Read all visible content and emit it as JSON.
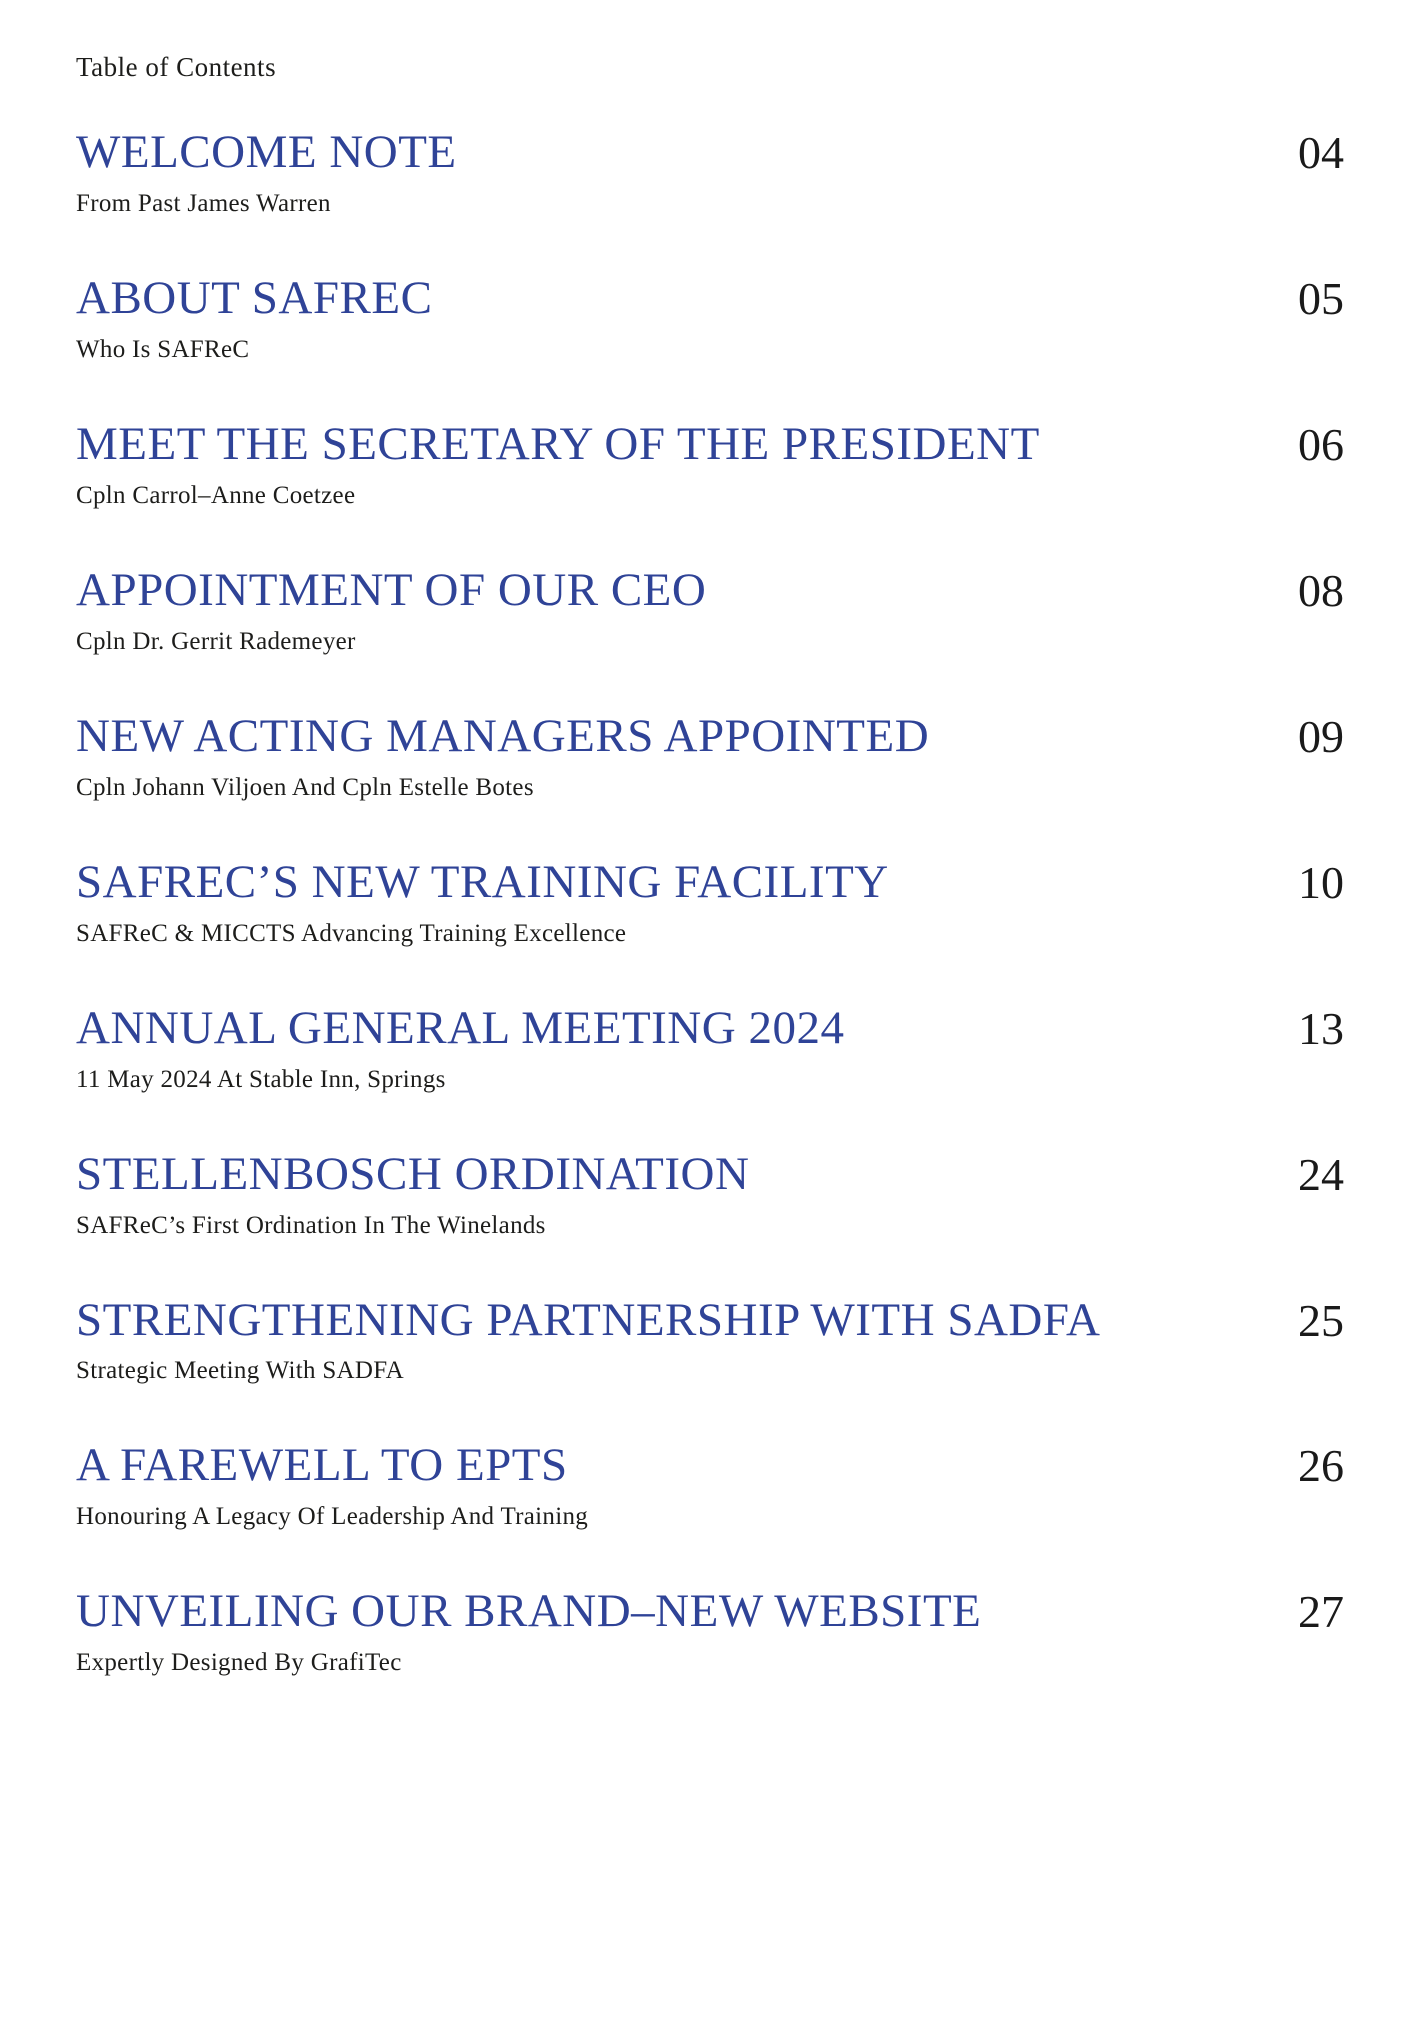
{
  "page": {
    "heading": "Table of Contents"
  },
  "colors": {
    "title_blue": "#2f4397",
    "body_text": "#1d1d1b",
    "background": "#ffffff"
  },
  "entries": [
    {
      "title": "WELCOME NOTE",
      "subtitle": "From Past James Warren",
      "page": "04"
    },
    {
      "title": "ABOUT SAFREC",
      "subtitle": "Who Is SAFReC",
      "page": "05"
    },
    {
      "title": "MEET THE SECRETARY OF THE PRESIDENT",
      "subtitle": "Cpln Carrol–Anne Coetzee",
      "page": "06"
    },
    {
      "title": "APPOINTMENT OF OUR CEO",
      "subtitle": "Cpln Dr. Gerrit Rademeyer",
      "page": "08"
    },
    {
      "title": "NEW ACTING MANAGERS APPOINTED",
      "subtitle": "Cpln Johann Viljoen And Cpln Estelle Botes",
      "page": "09"
    },
    {
      "title": "SAFREC’S NEW TRAINING FACILITY",
      "subtitle": "SAFReC & MICCTS Advancing Training Excellence",
      "page": "10"
    },
    {
      "title": "ANNUAL GENERAL MEETING 2024",
      "subtitle": "11 May 2024 At Stable Inn, Springs",
      "page": "13"
    },
    {
      "title": "STELLENBOSCH ORDINATION",
      "subtitle": "SAFReC’s First Ordination In The Winelands",
      "page": "24"
    },
    {
      "title": "STRENGTHENING PARTNERSHIP WITH SADFA",
      "subtitle": "Strategic Meeting With SADFA",
      "page": "25"
    },
    {
      "title": "A FAREWELL TO EPTS",
      "subtitle": "Honouring A Legacy Of Leadership And Training",
      "page": "26"
    },
    {
      "title": "UNVEILING OUR BRAND–NEW WEBSITE",
      "subtitle": "Expertly Designed By GrafiTec",
      "page": "27"
    }
  ]
}
